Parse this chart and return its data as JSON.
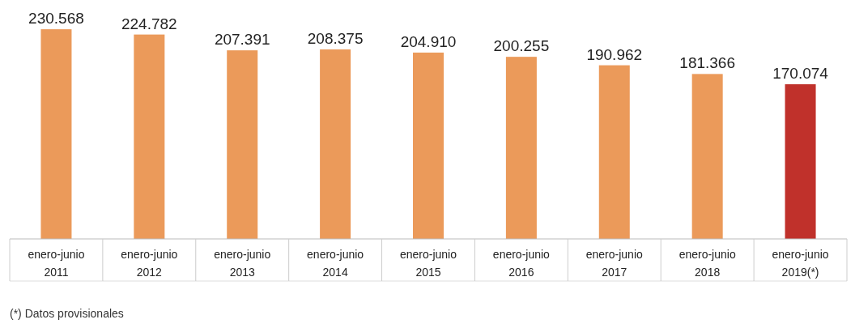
{
  "chart_data": {
    "type": "bar",
    "categories": [
      "enero-junio 2011",
      "enero-junio 2012",
      "enero-junio 2013",
      "enero-junio 2014",
      "enero-junio 2015",
      "enero-junio 2016",
      "enero-junio 2017",
      "enero-junio 2018",
      "enero-junio 2019(*)"
    ],
    "values": [
      230568,
      224782,
      207391,
      208375,
      204910,
      200255,
      190962,
      181366,
      170074
    ],
    "value_labels": [
      "230.568",
      "224.782",
      "207.391",
      "208.375",
      "204.910",
      "200.255",
      "190.962",
      "181.366",
      "170.074"
    ],
    "colors": [
      "#eb9a5a",
      "#eb9a5a",
      "#eb9a5a",
      "#eb9a5a",
      "#eb9a5a",
      "#eb9a5a",
      "#eb9a5a",
      "#eb9a5a",
      "#c0312b"
    ],
    "annotations": [
      "(*) Datos provisionales"
    ]
  }
}
